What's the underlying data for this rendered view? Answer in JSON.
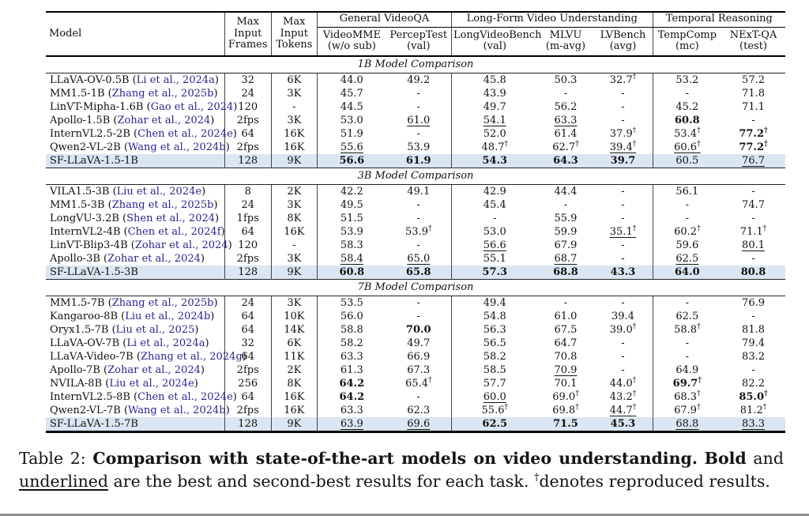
{
  "table": {
    "header": {
      "model": "Model",
      "max_frames": "Max Input Frames",
      "max_tokens": "Max Input Tokens",
      "groups": [
        {
          "label": "General VideoQA"
        },
        {
          "label": "Long-Form Video Understanding"
        },
        {
          "label": "Temporal Reasoning"
        }
      ],
      "columns": [
        {
          "name": "VideoMME",
          "sub": "(w/o sub)"
        },
        {
          "name": "PercepTest",
          "sub": "(val)"
        },
        {
          "name": "LongVideoBench",
          "sub": "(val)"
        },
        {
          "name": "MLVU",
          "sub": "(m-avg)"
        },
        {
          "name": "LVBench",
          "sub": "(avg)"
        },
        {
          "name": "TempComp",
          "sub": "(mc)"
        },
        {
          "name": "NExT-QA",
          "sub": "(test)"
        }
      ]
    },
    "sections": [
      {
        "title": "1B Model Comparison",
        "rows": [
          {
            "model": "LLaVA-OV-0.5B",
            "cite": "Li et al., 2024a",
            "frames": "32",
            "tokens": "6K",
            "cells": [
              "44.0",
              "49.2",
              "45.8",
              "50.3",
              "32.7|d",
              "53.2",
              "57.2"
            ]
          },
          {
            "model": "MM1.5-1B",
            "cite": "Zhang et al., 2025b",
            "frames": "24",
            "tokens": "3K",
            "cells": [
              "45.7",
              "-",
              "43.9",
              "-",
              "-",
              "-",
              "71.8"
            ]
          },
          {
            "model": "LinVT-Mipha-1.6B",
            "cite": "Gao et al., 2024",
            "frames": "120",
            "tokens": "-",
            "cells": [
              "44.5",
              "-",
              "49.7",
              "56.2",
              "-",
              "45.2",
              "71.1"
            ]
          },
          {
            "model": "Apollo-1.5B",
            "cite": "Zohar et al., 2024",
            "frames": "2fps",
            "tokens": "3K",
            "cells": [
              "53.0",
              "61.0|u",
              "54.1|u",
              "63.3|u",
              "-",
              "60.8|b",
              "-"
            ]
          },
          {
            "model": "InternVL2.5-2B",
            "cite": "Chen et al., 2024e",
            "frames": "64",
            "tokens": "16K",
            "cells": [
              "51.9",
              "-",
              "52.0",
              "61.4",
              "37.9|d",
              "53.4|d",
              "77.2|bd"
            ]
          },
          {
            "model": "Qwen2-VL-2B",
            "cite": "Wang et al., 2024b",
            "frames": "2fps",
            "tokens": "16K",
            "cells": [
              "55.6|u",
              "53.9",
              "48.7|d",
              "62.7|d",
              "39.4|ud",
              "60.6|ud",
              "77.2|bd"
            ]
          },
          {
            "model": "SF-LLaVA-1.5-1B",
            "cite": null,
            "highlight": true,
            "frames": "128",
            "tokens": "9K",
            "cells": [
              "56.6|b",
              "61.9|b",
              "54.3|b",
              "64.3|b",
              "39.7|b",
              "60.5",
              "76.7|u"
            ]
          }
        ]
      },
      {
        "title": "3B Model Comparison",
        "rows": [
          {
            "model": "VILA1.5-3B",
            "cite": "Liu et al., 2024e",
            "frames": "8",
            "tokens": "2K",
            "cells": [
              "42.2",
              "49.1",
              "42.9",
              "44.4",
              "-",
              "56.1",
              "-"
            ]
          },
          {
            "model": "MM1.5-3B",
            "cite": "Zhang et al., 2025b",
            "frames": "24",
            "tokens": "3K",
            "cells": [
              "49.5",
              "-",
              "45.4",
              "-",
              "-",
              "-",
              "74.7"
            ]
          },
          {
            "model": "LongVU-3.2B",
            "cite": "Shen et al., 2024",
            "frames": "1fps",
            "tokens": "8K",
            "cells": [
              "51.5",
              "-",
              "-",
              "55.9",
              "-",
              "-",
              "-"
            ]
          },
          {
            "model": "InternVL2-4B",
            "cite": "Chen et al., 2024f",
            "frames": "64",
            "tokens": "16K",
            "cells": [
              "53.9",
              "53.9|d",
              "53.0",
              "59.9",
              "35.1|ud",
              "60.2|d",
              "71.1|d"
            ]
          },
          {
            "model": "LinVT-Blip3-4B",
            "cite": "Zohar et al., 2024",
            "frames": "120",
            "tokens": "-",
            "cells": [
              "58.3",
              "-",
              "56.6|u",
              "67.9",
              "-",
              "59.6",
              "80.1|u"
            ]
          },
          {
            "model": "Apollo-3B",
            "cite": "Zohar et al., 2024",
            "frames": "2fps",
            "tokens": "3K",
            "cells": [
              "58.4|u",
              "65.0|u",
              "55.1",
              "68.7|u",
              "-",
              "62.5|u",
              "-"
            ]
          },
          {
            "model": "SF-LLaVA-1.5-3B",
            "cite": null,
            "highlight": true,
            "frames": "128",
            "tokens": "9K",
            "cells": [
              "60.8|b",
              "65.8|b",
              "57.3|b",
              "68.8|b",
              "43.3|b",
              "64.0|b",
              "80.8|b"
            ]
          }
        ]
      },
      {
        "title": "7B Model Comparison",
        "rows": [
          {
            "model": "MM1.5-7B",
            "cite": "Zhang et al., 2025b",
            "frames": "24",
            "tokens": "3K",
            "cells": [
              "53.5",
              "-",
              "49.4",
              "-",
              "-",
              "-",
              "76.9"
            ]
          },
          {
            "model": "Kangaroo-8B",
            "cite": "Liu et al., 2024b",
            "frames": "64",
            "tokens": "10K",
            "cells": [
              "56.0",
              "-",
              "54.8",
              "61.0",
              "39.4",
              "62.5",
              "-"
            ]
          },
          {
            "model": "Oryx1.5-7B",
            "cite": "Liu et al., 2025",
            "frames": "64",
            "tokens": "14K",
            "cells": [
              "58.8",
              "70.0|b",
              "56.3",
              "67.5",
              "39.0|d",
              "58.8|d",
              "81.8"
            ]
          },
          {
            "model": "LLaVA-OV-7B",
            "cite": "Li et al., 2024a",
            "frames": "32",
            "tokens": "6K",
            "cells": [
              "58.2",
              "49.7",
              "56.5",
              "64.7",
              "-",
              "-",
              "79.4"
            ]
          },
          {
            "model": "LLaVA-Video-7B",
            "cite": "Zhang et al., 2024g",
            "frames": "64",
            "tokens": "11K",
            "cells": [
              "63.3",
              "66.9",
              "58.2",
              "70.8",
              "-",
              "-",
              "83.2"
            ]
          },
          {
            "model": "Apollo-7B",
            "cite": "Zohar et al., 2024",
            "frames": "2fps",
            "tokens": "2K",
            "cells": [
              "61.3",
              "67.3",
              "58.5",
              "70.9|u",
              "-",
              "64.9",
              "-"
            ]
          },
          {
            "model": "NVILA-8B",
            "cite": "Liu et al., 2024e",
            "frames": "256",
            "tokens": "8K",
            "cells": [
              "64.2|b",
              "65.4|d",
              "57.7",
              "70.1",
              "44.0|d",
              "69.7|bd",
              "82.2"
            ]
          },
          {
            "model": "InternVL2.5-8B",
            "cite": "Chen et al., 2024e",
            "frames": "64",
            "tokens": "16K",
            "cells": [
              "64.2|b",
              "-",
              "60.0|u",
              "69.0|d",
              "43.2|d",
              "68.3|d",
              "85.0|bd"
            ]
          },
          {
            "model": "Qwen2-VL-7B",
            "cite": "Wang et al., 2024b",
            "frames": "2fps",
            "tokens": "16K",
            "cells": [
              "63.3",
              "62.3",
              "55.6|d",
              "69.8|d",
              "44.7|ud",
              "67.9|d",
              "81.2|d"
            ]
          },
          {
            "model": "SF-LLaVA-1.5-7B",
            "cite": null,
            "highlight": true,
            "frames": "128",
            "tokens": "9K",
            "cells": [
              "63.9|u",
              "69.6|u",
              "62.5|b",
              "71.5|b",
              "45.3|b",
              "68.8|u",
              "83.3|u"
            ]
          }
        ]
      }
    ]
  },
  "caption": {
    "segments": [
      {
        "t": "Table 2:  "
      },
      {
        "t": "Comparison with state-of-the-art models on video understanding.",
        "f": "b"
      },
      {
        "t": "  "
      },
      {
        "t": "Bold",
        "f": "b"
      },
      {
        "t": " and "
      },
      {
        "t": "underlined",
        "f": "u"
      },
      {
        "t": " are the best and second-best results for each task. "
      },
      {
        "t": "†",
        "f": "s"
      },
      {
        "t": "denotes reproduced results."
      }
    ]
  },
  "colors": {
    "highlight_row": "#dbe6f3",
    "citation": "#26268c"
  },
  "icon_names": []
}
